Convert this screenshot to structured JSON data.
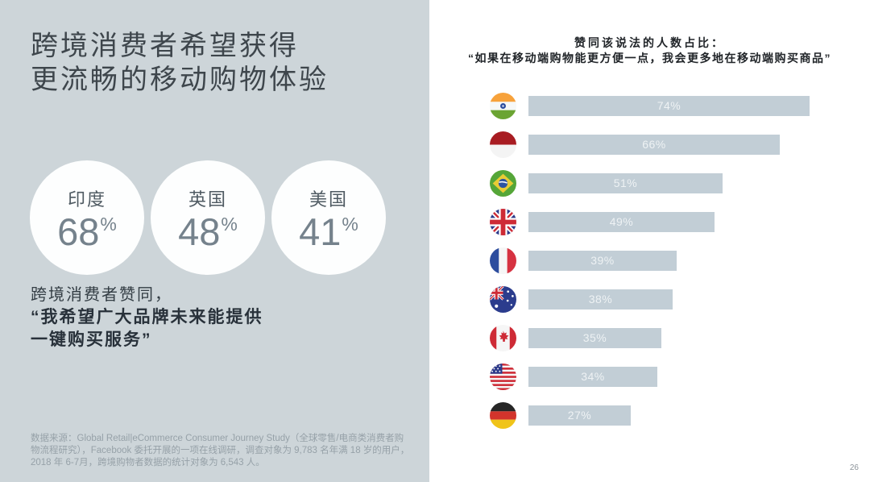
{
  "left_panel": {
    "title_line1": "跨境消费者希望获得",
    "title_line2": "更流畅的移动购物体验",
    "stats": [
      {
        "label": "印度",
        "value": "68",
        "unit": "%"
      },
      {
        "label": "英国",
        "value": "48",
        "unit": "%"
      },
      {
        "label": "美国",
        "value": "41",
        "unit": "%"
      }
    ],
    "statement_intro": "跨境消费者赞同，",
    "statement_bold_line1": "“我希望广大品牌未来能提供",
    "statement_bold_line2": "一键购买服务”",
    "source_text": "数据来源：Global Retail|eCommerce Consumer Journey Study（全球零售/电商类消费者购物流程研究），Facebook 委托开展的一项在线调研，调查对象为 9,783 名年满 18 岁的用户，2018 年 6-7月，跨境购物者数据的统计对象为 6,543 人。"
  },
  "chart": {
    "title_line1": "赞同该说法的人数占比：",
    "title_line2": "“如果在移动端购物能更方便一点，我会更多地在移动端购买商品”"
  },
  "chart_data": {
    "type": "bar",
    "orientation": "horizontal",
    "title": "赞同该说法的人数占比：“如果在移动端购物能更方便一点，我会更多地在移动端购买商品”",
    "categories": [
      "印度",
      "印度尼西亚",
      "巴西",
      "英国",
      "法国",
      "澳大利亚",
      "加拿大",
      "美国",
      "德国"
    ],
    "category_flags": [
      "india",
      "indonesia",
      "brazil",
      "uk",
      "france",
      "australia",
      "canada",
      "usa",
      "germany"
    ],
    "values": [
      74,
      66,
      51,
      49,
      39,
      38,
      35,
      34,
      27
    ],
    "labels": [
      "74%",
      "66%",
      "51%",
      "49%",
      "39%",
      "38%",
      "35%",
      "34%",
      "27%"
    ],
    "xlim": [
      0,
      100
    ],
    "grid": false,
    "legend": false,
    "bar_color": "#c2ced6",
    "label_color": "#eef2f4"
  },
  "page_number": "26",
  "colors": {
    "panel_background": "#cdd5d9",
    "chart_background": "#ffffff",
    "bar": "#c2ced6",
    "title_text": "#3e464c",
    "statement_text": "#28313a",
    "source_text": "#96a1a8"
  }
}
